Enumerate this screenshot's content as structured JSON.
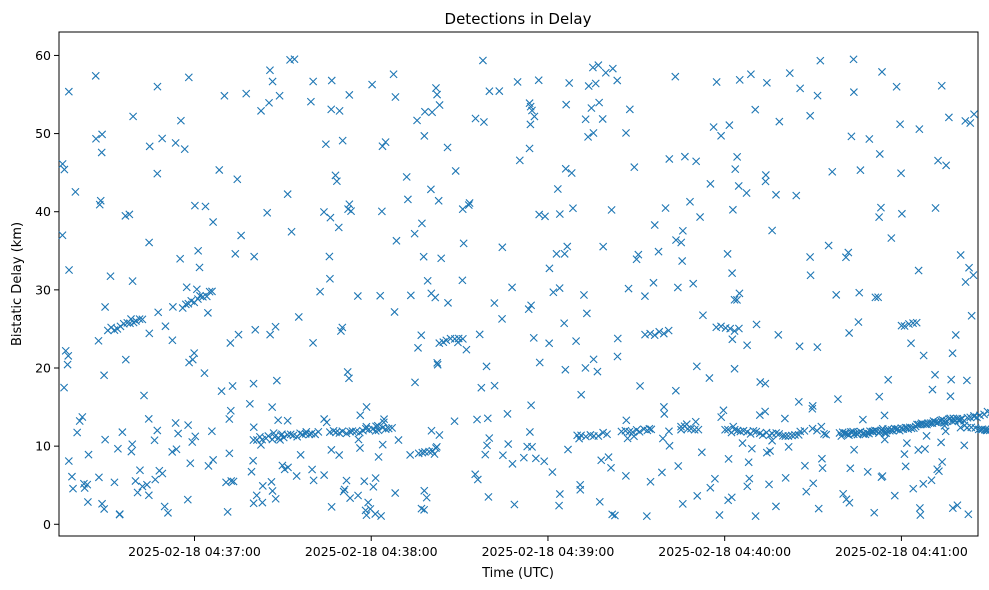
{
  "chart_data": {
    "type": "scatter",
    "title": "Detections in Delay",
    "xlabel": "Time (UTC)",
    "ylabel": "Bistatic Delay (km)",
    "marker": "x",
    "color": "#1f77b4",
    "grid": false,
    "x_start": "2025-02-18 04:36:15",
    "x_end": "2025-02-18 04:41:25",
    "xlim": [
      "2025-02-18 04:36:14",
      "2025-02-18 04:41:26"
    ],
    "ylim": [
      -1.5,
      63
    ],
    "x_ticks": [
      {
        "label": "2025-02-18 04:37:00",
        "value": "2025-02-18 04:37:00"
      },
      {
        "label": "2025-02-18 04:38:00",
        "value": "2025-02-18 04:38:00"
      },
      {
        "label": "2025-02-18 04:39:00",
        "value": "2025-02-18 04:39:00"
      },
      {
        "label": "2025-02-18 04:40:00",
        "value": "2025-02-18 04:40:00"
      },
      {
        "label": "2025-02-18 04:41:00",
        "value": "2025-02-18 04:41:00"
      }
    ],
    "y_ticks": [
      {
        "label": "0",
        "value": 0
      },
      {
        "label": "10",
        "value": 10
      },
      {
        "label": "20",
        "value": 20
      },
      {
        "label": "30",
        "value": 30
      },
      {
        "label": "40",
        "value": 40
      },
      {
        "label": "50",
        "value": 50
      },
      {
        "label": "60",
        "value": 60
      }
    ],
    "tracks": [
      {
        "from": [
          15.5,
          24.8
        ],
        "to": [
          27.5,
          26.3
        ],
        "n": 12
      },
      {
        "from": [
          41,
          27.8
        ],
        "to": [
          51,
          29.8
        ],
        "n": 11
      },
      {
        "from": [
          65,
          10.9
        ],
        "to": [
          87,
          11.6
        ],
        "n": 22
      },
      {
        "from": [
          91,
          11.7
        ],
        "to": [
          112,
          12.2
        ],
        "n": 20
      },
      {
        "from": [
          121,
          9.3
        ],
        "to": [
          127,
          9.6
        ],
        "n": 6
      },
      {
        "from": [
          128,
          23.4
        ],
        "to": [
          136,
          23.7
        ],
        "n": 7
      },
      {
        "from": [
          175,
          11.3
        ],
        "to": [
          185,
          11.6
        ],
        "n": 8
      },
      {
        "from": [
          190,
          11.9
        ],
        "to": [
          200,
          12.1
        ],
        "n": 9
      },
      {
        "from": [
          198,
          24.3
        ],
        "to": [
          206,
          24.6
        ],
        "n": 6
      },
      {
        "from": [
          210,
          12.5
        ],
        "to": [
          216,
          12.1
        ],
        "n": 6
      },
      {
        "from": [
          222,
          25.2
        ],
        "to": [
          230,
          24.9
        ],
        "n": 6
      },
      {
        "from": [
          225,
          12.0
        ],
        "to": [
          250,
          11.3
        ],
        "n": 24
      },
      {
        "from": [
          255,
          12.1
        ],
        "to": [
          258,
          12.3
        ],
        "n": 3
      },
      {
        "from": [
          264,
          11.5
        ],
        "to": [
          280,
          11.9
        ],
        "n": 30
      },
      {
        "from": [
          280,
          11.9
        ],
        "to": [
          305,
          13.6
        ],
        "n": 45
      },
      {
        "from": [
          285,
          25.4
        ],
        "to": [
          290,
          26.0
        ],
        "n": 5
      },
      {
        "from": [
          305,
          12.6
        ],
        "to": [
          315,
          12.1
        ],
        "n": 9
      },
      {
        "from": [
          312,
          12.0
        ],
        "to": [
          323,
          12.0
        ],
        "n": 10
      },
      {
        "from": [
          305,
          13.3
        ],
        "to": [
          322,
          15.0
        ],
        "n": 16
      }
    ]
  }
}
